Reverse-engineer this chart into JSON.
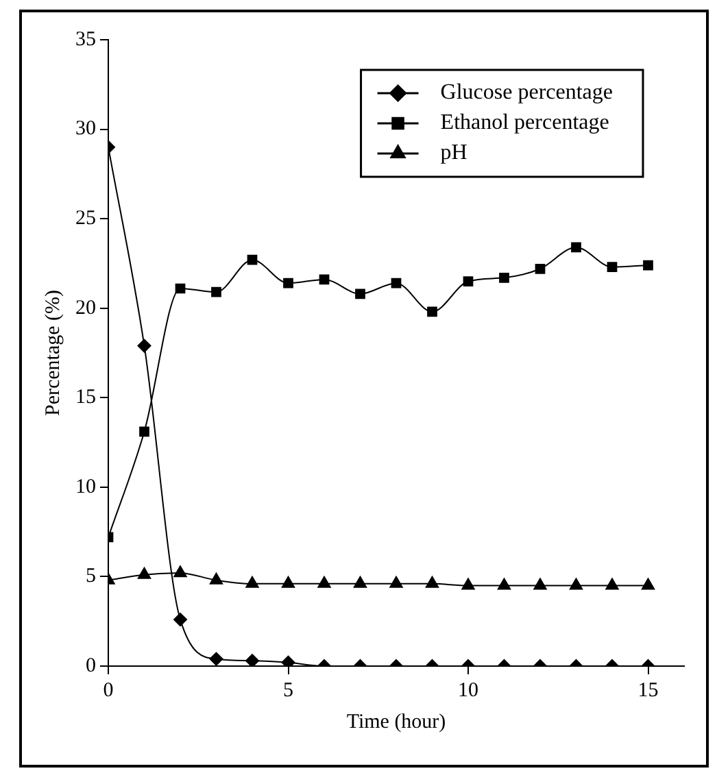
{
  "chart_data": {
    "type": "line",
    "xlabel": "Time (hour)",
    "ylabel": "Percentage (%)",
    "x": [
      0,
      1,
      2,
      3,
      4,
      5,
      6,
      7,
      8,
      9,
      10,
      11,
      12,
      13,
      14,
      15
    ],
    "series": [
      {
        "name": "Glucose percentage",
        "color": "#000000",
        "marker": "diamond",
        "values": [
          29,
          17.9,
          2.6,
          0.4,
          0.3,
          0.2,
          0,
          0,
          0,
          0,
          0,
          0,
          0,
          0,
          0,
          0
        ]
      },
      {
        "name": "Ethanol percentage",
        "color": "#000000",
        "marker": "square",
        "values": [
          7.2,
          13.1,
          21.1,
          20.9,
          22.7,
          21.4,
          21.6,
          20.8,
          21.4,
          19.8,
          21.5,
          21.7,
          22.2,
          23.4,
          22.3,
          22.4
        ]
      },
      {
        "name": "pH",
        "color": "#000000",
        "marker": "triangle",
        "values": [
          4.8,
          5.1,
          5.2,
          4.8,
          4.6,
          4.6,
          4.6,
          4.6,
          4.6,
          4.6,
          4.5,
          4.5,
          4.5,
          4.5,
          4.5,
          4.5
        ]
      }
    ],
    "xlim": [
      0,
      16
    ],
    "xticks": [
      0,
      5,
      10,
      15
    ],
    "ylim": [
      0,
      35
    ],
    "yticks": [
      0,
      5,
      10,
      15,
      20,
      25,
      30,
      35
    ],
    "grid": false,
    "legend": "top right"
  }
}
